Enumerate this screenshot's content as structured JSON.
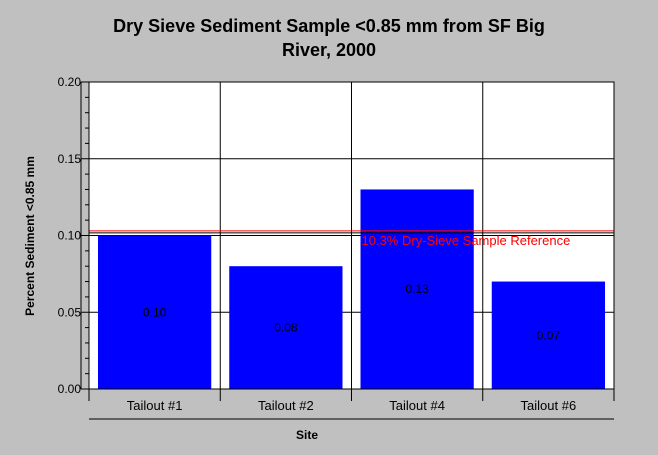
{
  "chart_data": {
    "type": "bar",
    "title_lines": [
      "Dry Sieve Sediment Sample <0.85 mm from SF Big",
      "River, 2000"
    ],
    "xlabel": "Site",
    "ylabel": "Percent Sediment <0.85 mm",
    "categories": [
      "Tailout #1",
      "Tailout #2",
      "Tailout #4",
      "Tailout #6"
    ],
    "values": [
      0.1,
      0.08,
      0.13,
      0.07
    ],
    "data_labels": [
      "0.10",
      "0.08",
      "0.13",
      "0.07"
    ],
    "ylim": [
      0,
      0.2
    ],
    "yticks": [
      0.0,
      0.05,
      0.1,
      0.15,
      0.2
    ],
    "ytick_labels": [
      "0.00",
      "0.05",
      "0.10",
      "0.15",
      "0.20"
    ],
    "grid": true,
    "reference_line": {
      "value": 0.103,
      "label": "10.3% Dry-Sieve Sample Reference",
      "color": "#ff0000"
    },
    "colors": {
      "bar": "#0000ff",
      "background": "#c0c0c0",
      "plot_area": "#ffffff"
    }
  }
}
